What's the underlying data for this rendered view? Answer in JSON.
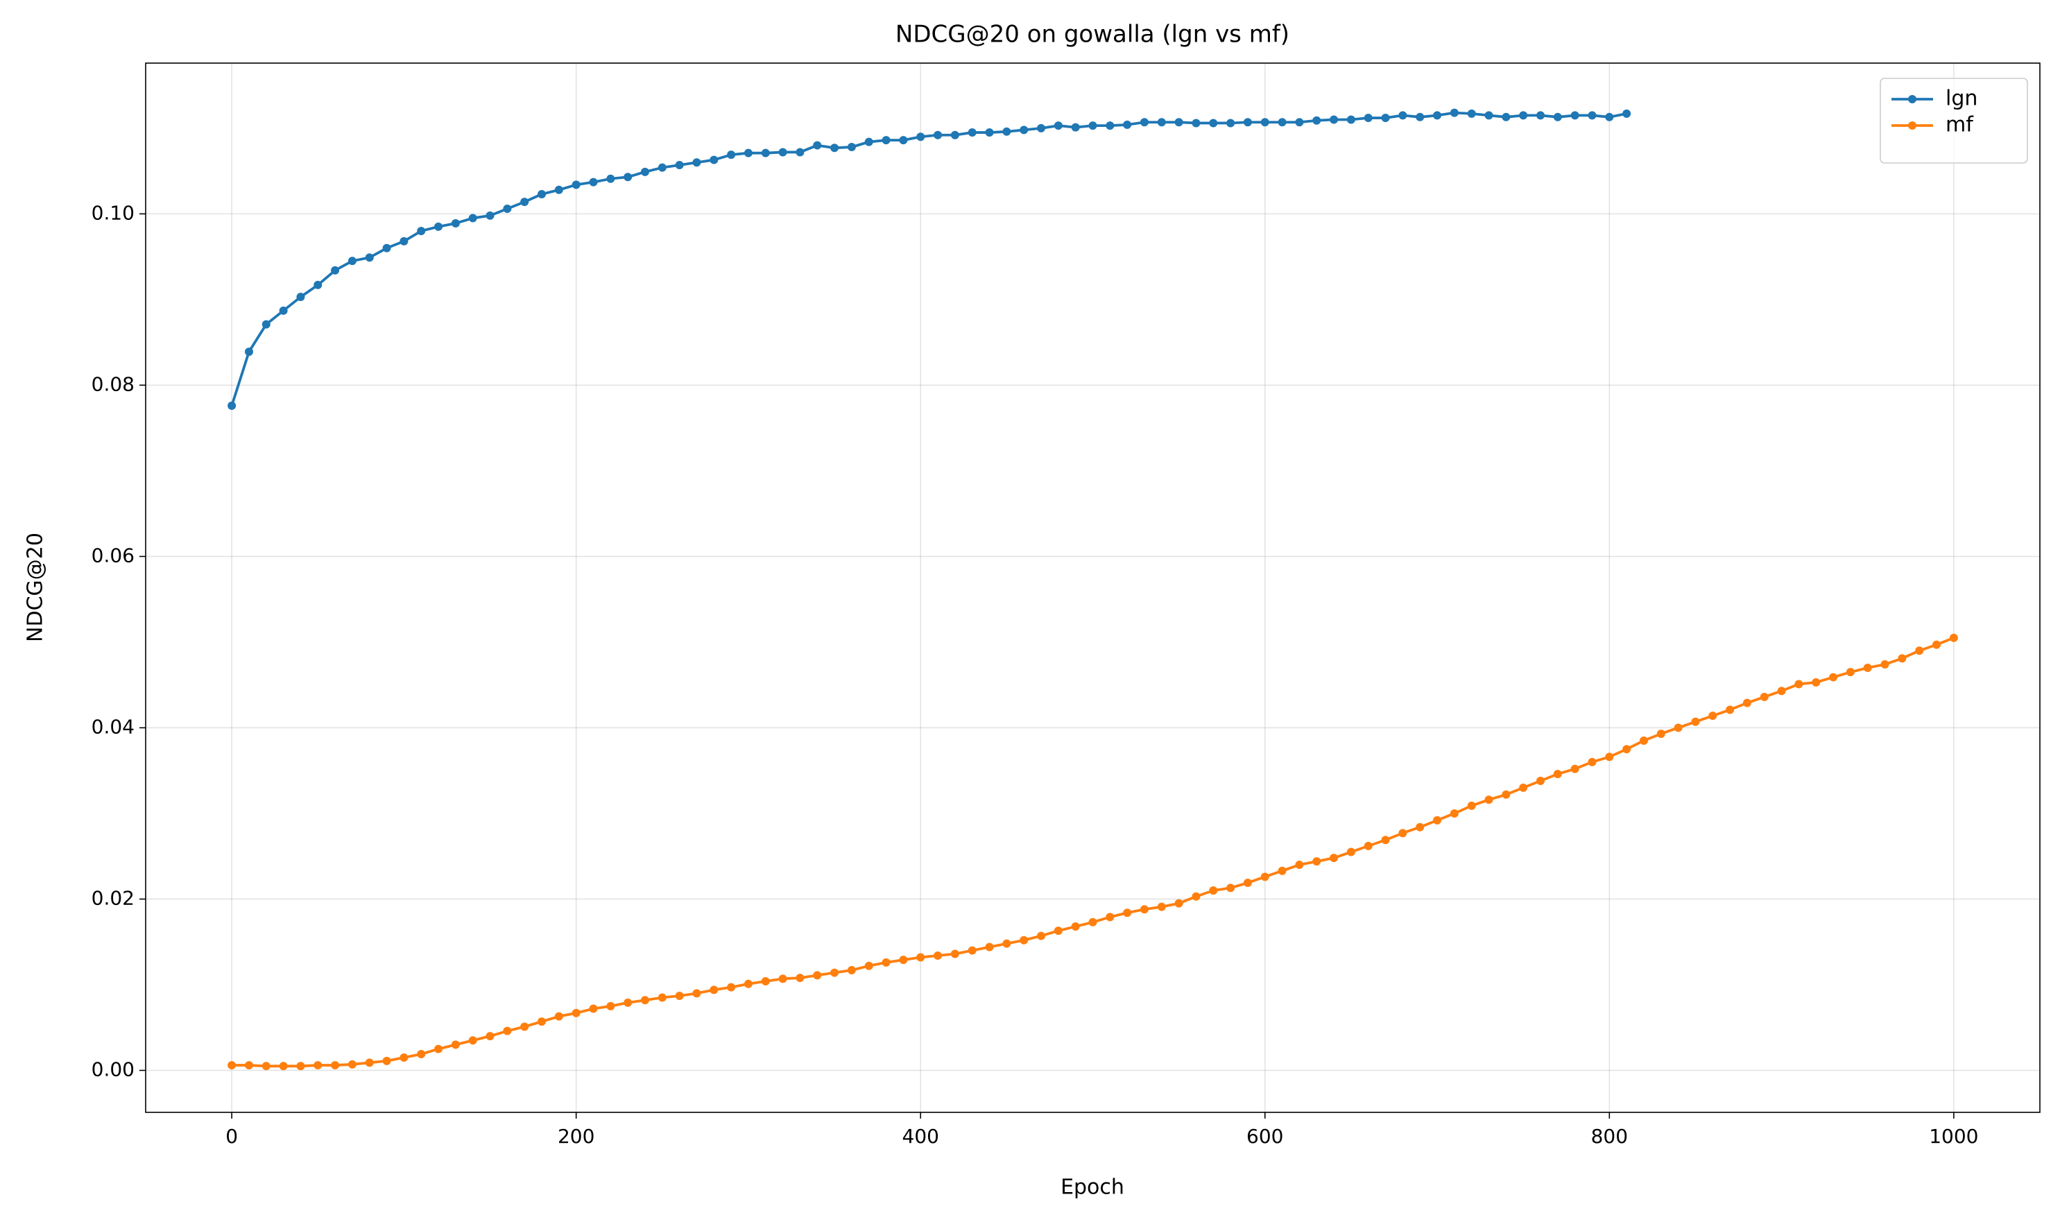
{
  "chart_data": {
    "type": "line",
    "title": "NDCG@20 on gowalla (lgn vs mf)",
    "x_label": "Epoch",
    "y_label": "NDCG@20",
    "xlim": [
      -50,
      1050
    ],
    "xticks": [
      0,
      200,
      400,
      600,
      800,
      1000
    ],
    "ylim": [
      -0.0049,
      0.1176
    ],
    "yticks": [
      {
        "value": 0,
        "label": "0.00"
      },
      {
        "value": 0.02,
        "label": "0.02"
      },
      {
        "value": 0.04,
        "label": "0.04"
      },
      {
        "value": 0.06,
        "label": "0.06"
      },
      {
        "value": 0.08,
        "label": "0.08"
      },
      {
        "value": 0.1,
        "label": "0.10"
      }
    ],
    "grid": true,
    "legend": "upper right",
    "series": [
      {
        "name": "lgn",
        "color": "#1f77b4",
        "x": [
          0,
          10,
          20,
          30,
          40,
          50,
          60,
          70,
          80,
          90,
          100,
          110,
          120,
          130,
          140,
          150,
          160,
          170,
          180,
          190,
          200,
          210,
          220,
          230,
          240,
          250,
          260,
          270,
          280,
          290,
          300,
          310,
          320,
          330,
          340,
          350,
          360,
          370,
          380,
          390,
          400,
          410,
          420,
          430,
          440,
          450,
          460,
          470,
          480,
          490,
          500,
          510,
          520,
          530,
          540,
          550,
          560,
          570,
          580,
          590,
          600,
          610,
          620,
          630,
          640,
          650,
          660,
          670,
          680,
          690,
          700,
          710,
          720,
          730,
          740,
          750,
          760,
          770,
          780,
          790,
          800,
          810
        ],
        "values": [
          0.0776,
          0.0839,
          0.0871,
          0.0887,
          0.0903,
          0.0917,
          0.0934,
          0.0945,
          0.0949,
          0.096,
          0.0968,
          0.098,
          0.0985,
          0.0989,
          0.0995,
          0.0998,
          0.1006,
          0.1014,
          0.1023,
          0.1028,
          0.1034,
          0.1037,
          0.1041,
          0.1043,
          0.1049,
          0.1054,
          0.1057,
          0.106,
          0.1063,
          0.1069,
          0.1071,
          0.1071,
          0.1072,
          0.1072,
          0.108,
          0.1077,
          0.1078,
          0.1084,
          0.1086,
          0.1086,
          0.109,
          0.1092,
          0.1092,
          0.1095,
          0.1095,
          0.1096,
          0.1098,
          0.11,
          0.1103,
          0.1101,
          0.1103,
          0.1103,
          0.1104,
          0.1107,
          0.1107,
          0.1107,
          0.1106,
          0.1106,
          0.1106,
          0.1107,
          0.1107,
          0.1107,
          0.1107,
          0.1109,
          0.111,
          0.111,
          0.1112,
          0.1112,
          0.1115,
          0.1113,
          0.1115,
          0.1118,
          0.1117,
          0.1115,
          0.1113,
          0.1115,
          0.1115,
          0.1113,
          0.1115,
          0.1115,
          0.1113,
          0.1117
        ]
      },
      {
        "name": "mf",
        "color": "#ff7f0e",
        "x": [
          0,
          10,
          20,
          30,
          40,
          50,
          60,
          70,
          80,
          90,
          100,
          110,
          120,
          130,
          140,
          150,
          160,
          170,
          180,
          190,
          200,
          210,
          220,
          230,
          240,
          250,
          260,
          270,
          280,
          290,
          300,
          310,
          320,
          330,
          340,
          350,
          360,
          370,
          380,
          390,
          400,
          410,
          420,
          430,
          440,
          450,
          460,
          470,
          480,
          490,
          500,
          510,
          520,
          530,
          540,
          550,
          560,
          570,
          580,
          590,
          600,
          610,
          620,
          630,
          640,
          650,
          660,
          670,
          680,
          690,
          700,
          710,
          720,
          730,
          740,
          750,
          760,
          770,
          780,
          790,
          800,
          810,
          820,
          830,
          840,
          850,
          860,
          870,
          880,
          890,
          900,
          910,
          920,
          930,
          940,
          950,
          960,
          970,
          980,
          990,
          1000
        ],
        "values": [
          0.0006,
          0.0006,
          0.0005,
          0.0005,
          0.0005,
          0.0006,
          0.0006,
          0.0007,
          0.0009,
          0.0011,
          0.0015,
          0.0019,
          0.0025,
          0.003,
          0.0035,
          0.004,
          0.0046,
          0.0051,
          0.0057,
          0.0063,
          0.0067,
          0.0072,
          0.0075,
          0.0079,
          0.0082,
          0.0085,
          0.0087,
          0.009,
          0.0094,
          0.0097,
          0.0101,
          0.0104,
          0.0107,
          0.0108,
          0.0111,
          0.0114,
          0.0117,
          0.0122,
          0.0126,
          0.0129,
          0.0132,
          0.0134,
          0.0136,
          0.014,
          0.0144,
          0.0148,
          0.0152,
          0.0157,
          0.0163,
          0.0168,
          0.0173,
          0.0179,
          0.0184,
          0.0188,
          0.0191,
          0.0195,
          0.0203,
          0.021,
          0.0213,
          0.0219,
          0.0226,
          0.0233,
          0.024,
          0.0244,
          0.0248,
          0.0255,
          0.0262,
          0.0269,
          0.0277,
          0.0284,
          0.0292,
          0.03,
          0.0309,
          0.0316,
          0.0322,
          0.033,
          0.0338,
          0.0346,
          0.0352,
          0.036,
          0.0366,
          0.0375,
          0.0385,
          0.0393,
          0.04,
          0.0407,
          0.0414,
          0.0421,
          0.0429,
          0.0436,
          0.0443,
          0.0451,
          0.0453,
          0.0459,
          0.0465,
          0.047,
          0.0474,
          0.0481,
          0.049,
          0.0497,
          0.0505
        ]
      }
    ]
  }
}
